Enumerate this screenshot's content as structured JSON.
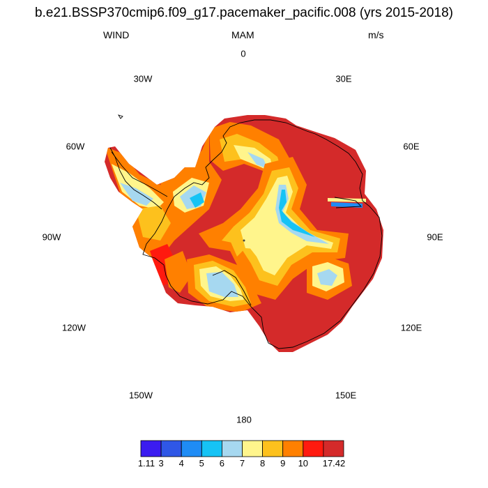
{
  "title": "b.e21.BSSP370cmip6.f09_g17.pacemaker_pacific.008 (yrs 2015-2018)",
  "variable": "WIND",
  "season": "MAM",
  "units": "m/s",
  "longitude_labels": {
    "lon_0": "0",
    "lon_30e": "30E",
    "lon_60e": "60E",
    "lon_90e": "90E",
    "lon_120e": "120E",
    "lon_150e": "150E",
    "lon_180": "180",
    "lon_150w": "150W",
    "lon_120w": "120W",
    "lon_90w": "90W",
    "lon_60w": "60W",
    "lon_30w": "30W"
  },
  "colorbar": {
    "labels": [
      "1.11",
      "3",
      "4",
      "5",
      "6",
      "7",
      "8",
      "9",
      "10",
      "17.42"
    ],
    "colors": [
      "#3b1cf0",
      "#2f57e6",
      "#1f8cf5",
      "#16c3f5",
      "#a6d8f0",
      "#fff58c",
      "#fdc11d",
      "#ff8000",
      "#ff1a0f",
      "#d42a2a"
    ]
  },
  "map_colors": {
    "land_outline": "#000000",
    "max_wind": "#d42a2a"
  }
}
